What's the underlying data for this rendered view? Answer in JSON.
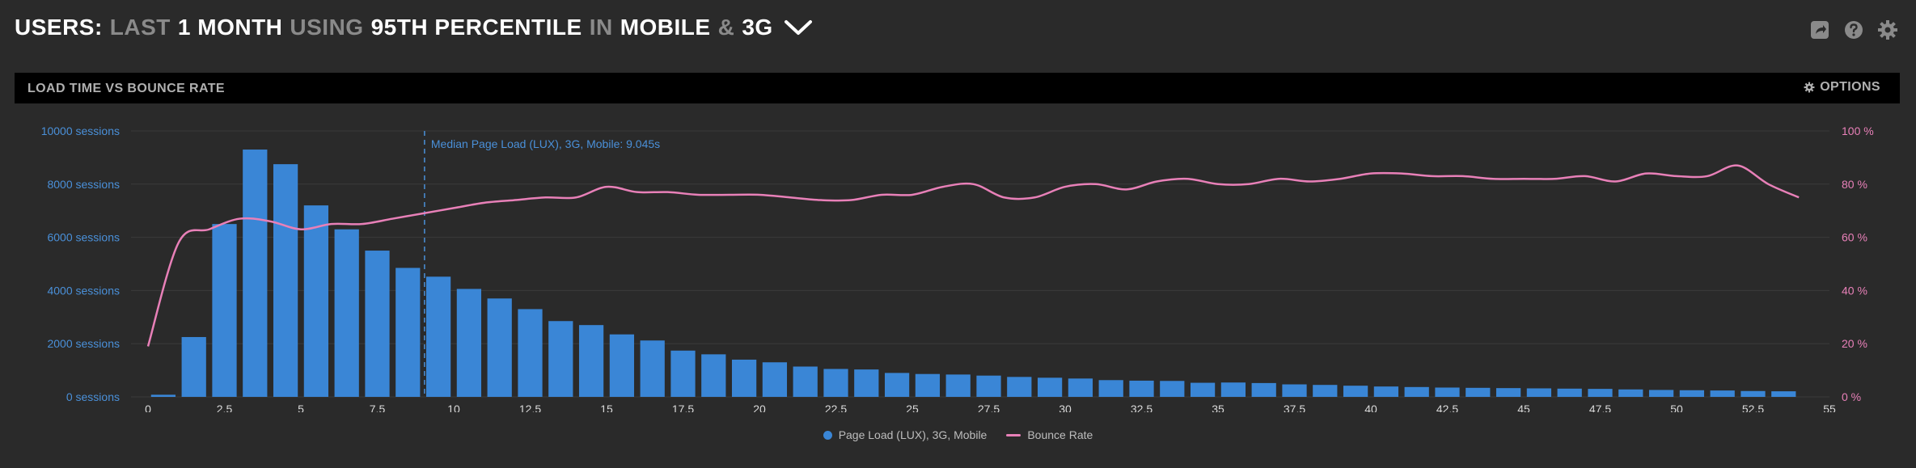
{
  "header": {
    "prefix": "USERS:",
    "w_last": "LAST",
    "w_range": "1 MONTH",
    "w_using": "USING",
    "w_stat": "95TH PERCENTILE",
    "w_in": "IN",
    "w_device": "MOBILE",
    "w_amp": "&",
    "w_network": "3G"
  },
  "tools": {
    "share_icon": "share-icon",
    "help_icon": "help-icon",
    "settings_icon": "gear-icon"
  },
  "panel": {
    "title": "LOAD TIME VS BOUNCE RATE",
    "options_label": "OPTIONS"
  },
  "colors": {
    "bars": "#3a86d6",
    "bounce": "#e880b8",
    "left_axis": "#4a90d9",
    "right_axis": "#e880b8"
  },
  "chart_data": {
    "type": "bar",
    "x_tick_labels": [
      "0",
      "2.5",
      "5",
      "7.5",
      "10",
      "12.5",
      "15",
      "17.5",
      "20",
      "22.5",
      "25",
      "27.5",
      "30",
      "32.5",
      "35",
      "37.5",
      "40",
      "42.5",
      "45",
      "47.5",
      "50",
      "52.5",
      "55"
    ],
    "y_left_ticks": [
      "0 sessions",
      "2000 sessions",
      "4000 sessions",
      "6000 sessions",
      "8000 sessions",
      "10000 sessions"
    ],
    "y_right_ticks": [
      "0 %",
      "20 %",
      "40 %",
      "60 %",
      "80 %",
      "100 %"
    ],
    "ylim_left": [
      0,
      10000
    ],
    "ylim_right": [
      0,
      100
    ],
    "xlim": [
      0,
      55
    ],
    "grid": true,
    "legend_position": "bottom-center",
    "annotation": {
      "x": 9.045,
      "label": "Median Page Load (LUX), 3G, Mobile: 9.045s"
    },
    "series": [
      {
        "name": "Page Load (LUX), 3G, Mobile",
        "type": "bar",
        "axis": "left",
        "x": [
          0,
          1,
          2,
          3,
          4,
          5,
          6,
          7,
          8,
          9,
          10,
          11,
          12,
          13,
          14,
          15,
          16,
          17,
          18,
          19,
          20,
          21,
          22,
          23,
          24,
          25,
          26,
          27,
          28,
          29,
          30,
          31,
          32,
          33,
          34,
          35,
          36,
          37,
          38,
          39,
          40,
          41,
          42,
          43,
          44,
          45,
          46,
          47,
          48,
          49,
          50,
          51,
          52,
          53
        ],
        "values": [
          80,
          2250,
          6500,
          9300,
          8750,
          7200,
          6300,
          5500,
          4850,
          4520,
          4060,
          3700,
          3300,
          2850,
          2700,
          2350,
          2120,
          1740,
          1600,
          1400,
          1300,
          1140,
          1050,
          1030,
          900,
          860,
          840,
          800,
          750,
          720,
          690,
          630,
          610,
          600,
          530,
          540,
          520,
          470,
          450,
          420,
          390,
          370,
          350,
          340,
          330,
          320,
          310,
          300,
          280,
          260,
          250,
          240,
          220,
          210
        ]
      },
      {
        "name": "Bounce Rate",
        "type": "line",
        "axis": "right",
        "x": [
          0,
          1,
          2,
          3,
          4,
          5,
          6,
          7,
          8,
          9,
          10,
          11,
          12,
          13,
          14,
          15,
          16,
          17,
          18,
          19,
          20,
          21,
          22,
          23,
          24,
          25,
          26,
          27,
          28,
          29,
          30,
          31,
          32,
          33,
          34,
          35,
          36,
          37,
          38,
          39,
          40,
          41,
          42,
          43,
          44,
          45,
          46,
          47,
          48,
          49,
          50,
          51,
          52,
          53,
          54
        ],
        "values": [
          19,
          58,
          63,
          67,
          66,
          63,
          65,
          65,
          67,
          69,
          71,
          73,
          74,
          75,
          75,
          79,
          77,
          77,
          76,
          76,
          76,
          75,
          74,
          74,
          76,
          76,
          79,
          80,
          75,
          75,
          79,
          80,
          78,
          81,
          82,
          80,
          80,
          82,
          81,
          82,
          84,
          84,
          83,
          83,
          82,
          82,
          82,
          83,
          81,
          84,
          83,
          83,
          87,
          80,
          75
        ]
      }
    ]
  }
}
